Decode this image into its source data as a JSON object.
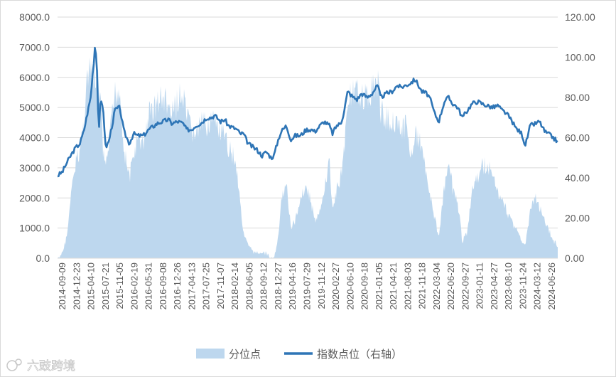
{
  "watermark": {
    "text": "六豉跨境"
  },
  "colors": {
    "area": "#bdd7ee",
    "line": "#2e75b6",
    "axis": "#d9d9d9",
    "text": "#595959"
  },
  "chart_data": {
    "type": "area+line",
    "title": "",
    "legend": {
      "position": "bottom",
      "entries": [
        {
          "key": "percentile",
          "label": "分位点",
          "kind": "area"
        },
        {
          "key": "index",
          "label": "指数点位（右轴）",
          "kind": "line"
        }
      ]
    },
    "left_axis": {
      "min": 0,
      "max": 8000,
      "step": 1000,
      "ticks": [
        "0.0",
        "1000.0",
        "2000.0",
        "3000.0",
        "4000.0",
        "5000.0",
        "6000.0",
        "7000.0",
        "8000.0"
      ]
    },
    "right_axis": {
      "min": 0,
      "max": 120,
      "step": 20,
      "ticks": [
        "0.00",
        "20.00",
        "40.00",
        "60.00",
        "80.00",
        "100.00",
        "120.00"
      ]
    },
    "x_axis": {
      "start": "2014-09-09",
      "end": "2024-09-30",
      "ticks": [
        "2014-09-09",
        "2014-12-23",
        "2015-04-10",
        "2015-07-21",
        "2015-11-05",
        "2016-02-19",
        "2016-05-31",
        "2016-09-08",
        "2016-12-26",
        "2017-04-13",
        "2017-07-25",
        "2017-11-07",
        "2018-02-14",
        "2018-06-05",
        "2018-09-12",
        "2018-12-27",
        "2019-04-16",
        "2019-07-29",
        "2019-11-12",
        "2020-02-27",
        "2020-06-10",
        "2020-09-18",
        "2021-01-05",
        "2021-04-21",
        "2021-08-03",
        "2021-11-18",
        "2022-03-04",
        "2022-06-20",
        "2022-09-27",
        "2023-01-11",
        "2023-04-27",
        "2023-08-10",
        "2023-11-24",
        "2024-03-12",
        "2024-06-26"
      ]
    },
    "series": [
      {
        "name": "分位点",
        "axis": "left",
        "kind": "area",
        "points": [
          [
            "2014-09-09",
            30
          ],
          [
            "2014-10-20",
            300
          ],
          [
            "2014-11-20",
            1000
          ],
          [
            "2014-12-20",
            2500
          ],
          [
            "2015-01-20",
            3500
          ],
          [
            "2015-02-20",
            4000
          ],
          [
            "2015-03-20",
            5000
          ],
          [
            "2015-04-10",
            6500
          ],
          [
            "2015-05-10",
            6800
          ],
          [
            "2015-06-10",
            6600
          ],
          [
            "2015-07-10",
            6300
          ],
          [
            "2015-07-21",
            6000
          ],
          [
            "2015-08-10",
            3800
          ],
          [
            "2015-09-01",
            3400
          ],
          [
            "2015-10-01",
            4600
          ],
          [
            "2015-11-05",
            6100
          ],
          [
            "2015-12-10",
            6300
          ],
          [
            "2016-01-10",
            4000
          ],
          [
            "2016-02-19",
            3000
          ],
          [
            "2016-03-20",
            3800
          ],
          [
            "2016-04-20",
            4400
          ],
          [
            "2016-05-31",
            4200
          ],
          [
            "2016-07-10",
            5300
          ],
          [
            "2016-08-20",
            5600
          ],
          [
            "2016-09-08",
            5700
          ],
          [
            "2016-10-20",
            5900
          ],
          [
            "2016-12-01",
            5600
          ],
          [
            "2016-12-26",
            5200
          ],
          [
            "2017-02-10",
            5900
          ],
          [
            "2017-03-20",
            5800
          ],
          [
            "2017-04-13",
            5200
          ],
          [
            "2017-05-20",
            4700
          ],
          [
            "2017-06-20",
            4600
          ],
          [
            "2017-07-25",
            4900
          ],
          [
            "2017-09-10",
            5000
          ],
          [
            "2017-10-10",
            5100
          ],
          [
            "2017-11-07",
            5000
          ],
          [
            "2017-12-20",
            4600
          ],
          [
            "2018-01-20",
            4400
          ],
          [
            "2018-02-14",
            4100
          ],
          [
            "2018-03-20",
            3900
          ],
          [
            "2018-04-20",
            3200
          ],
          [
            "2018-05-10",
            2300
          ],
          [
            "2018-06-05",
            1000
          ],
          [
            "2018-07-10",
            500
          ],
          [
            "2018-08-20",
            300
          ],
          [
            "2018-09-12",
            250
          ],
          [
            "2018-10-20",
            300
          ],
          [
            "2018-11-20",
            250
          ],
          [
            "2018-12-27",
            50
          ],
          [
            "2019-01-15",
            40
          ],
          [
            "2019-02-20",
            900
          ],
          [
            "2019-03-10",
            2200
          ],
          [
            "2019-04-16",
            2800
          ],
          [
            "2019-05-20",
            1200
          ],
          [
            "2019-06-20",
            1400
          ],
          [
            "2019-07-29",
            2300
          ],
          [
            "2019-09-10",
            2700
          ],
          [
            "2019-10-20",
            2000
          ],
          [
            "2019-11-12",
            1400
          ],
          [
            "2019-12-20",
            1700
          ],
          [
            "2020-01-20",
            2600
          ],
          [
            "2020-02-27",
            3600
          ],
          [
            "2020-03-20",
            1800
          ],
          [
            "2020-04-20",
            2500
          ],
          [
            "2020-05-20",
            3100
          ],
          [
            "2020-06-10",
            3800
          ],
          [
            "2020-07-20",
            6200
          ],
          [
            "2020-08-20",
            6000
          ],
          [
            "2020-09-18",
            6000
          ],
          [
            "2020-10-20",
            6200
          ],
          [
            "2020-12-01",
            5800
          ],
          [
            "2021-01-05",
            6300
          ],
          [
            "2021-02-15",
            6500
          ],
          [
            "2021-03-10",
            5400
          ],
          [
            "2021-04-21",
            5200
          ],
          [
            "2021-06-01",
            5000
          ],
          [
            "2021-07-10",
            5200
          ],
          [
            "2021-08-03",
            4600
          ],
          [
            "2021-09-10",
            4900
          ],
          [
            "2021-10-10",
            4000
          ],
          [
            "2021-11-18",
            4500
          ],
          [
            "2022-01-05",
            4200
          ],
          [
            "2022-02-10",
            3200
          ],
          [
            "2022-03-04",
            2500
          ],
          [
            "2022-04-10",
            1500
          ],
          [
            "2022-05-10",
            900
          ],
          [
            "2022-06-20",
            2600
          ],
          [
            "2022-07-20",
            3400
          ],
          [
            "2022-08-20",
            2600
          ],
          [
            "2022-09-27",
            2000
          ],
          [
            "2022-10-31",
            700
          ],
          [
            "2022-12-10",
            1100
          ],
          [
            "2023-01-11",
            2600
          ],
          [
            "2023-02-20",
            3000
          ],
          [
            "2023-03-20",
            3300
          ],
          [
            "2023-04-27",
            3500
          ],
          [
            "2023-06-10",
            3000
          ],
          [
            "2023-07-20",
            2500
          ],
          [
            "2023-08-10",
            2200
          ],
          [
            "2023-09-20",
            1800
          ],
          [
            "2023-11-01",
            1400
          ],
          [
            "2023-11-24",
            1200
          ],
          [
            "2024-01-10",
            700
          ],
          [
            "2024-02-05",
            500
          ],
          [
            "2024-03-12",
            1800
          ],
          [
            "2024-04-20",
            2300
          ],
          [
            "2024-05-20",
            1900
          ],
          [
            "2024-06-26",
            1400
          ],
          [
            "2024-08-10",
            900
          ],
          [
            "2024-09-30",
            500
          ]
        ]
      },
      {
        "name": "指数点位（右轴）",
        "axis": "right",
        "kind": "line",
        "points": [
          [
            "2014-09-09",
            41
          ],
          [
            "2014-10-15",
            43
          ],
          [
            "2014-11-20",
            48
          ],
          [
            "2014-12-23",
            52
          ],
          [
            "2015-01-20",
            55
          ],
          [
            "2015-02-20",
            57
          ],
          [
            "2015-03-20",
            63
          ],
          [
            "2015-04-10",
            70
          ],
          [
            "2015-05-10",
            80
          ],
          [
            "2015-06-05",
            100
          ],
          [
            "2015-06-12",
            107
          ],
          [
            "2015-06-25",
            96
          ],
          [
            "2015-07-08",
            62
          ],
          [
            "2015-07-21",
            78
          ],
          [
            "2015-08-10",
            75
          ],
          [
            "2015-08-28",
            55
          ],
          [
            "2015-09-20",
            58
          ],
          [
            "2015-10-20",
            68
          ],
          [
            "2015-11-05",
            74
          ],
          [
            "2015-12-10",
            75
          ],
          [
            "2016-01-10",
            63
          ],
          [
            "2016-02-19",
            57
          ],
          [
            "2016-03-20",
            62
          ],
          [
            "2016-04-20",
            61
          ],
          [
            "2016-05-31",
            61
          ],
          [
            "2016-07-10",
            64
          ],
          [
            "2016-08-20",
            66
          ],
          [
            "2016-09-08",
            67
          ],
          [
            "2016-10-20",
            68
          ],
          [
            "2016-12-01",
            69
          ],
          [
            "2016-12-26",
            67
          ],
          [
            "2017-02-10",
            68
          ],
          [
            "2017-03-20",
            67
          ],
          [
            "2017-04-13",
            64
          ],
          [
            "2017-05-20",
            64
          ],
          [
            "2017-06-20",
            66
          ],
          [
            "2017-07-25",
            67
          ],
          [
            "2017-09-10",
            70
          ],
          [
            "2017-10-10",
            70
          ],
          [
            "2017-11-07",
            71
          ],
          [
            "2017-12-20",
            68
          ],
          [
            "2018-01-20",
            69
          ],
          [
            "2018-02-14",
            66
          ],
          [
            "2018-03-20",
            65
          ],
          [
            "2018-04-20",
            64
          ],
          [
            "2018-05-10",
            62
          ],
          [
            "2018-06-05",
            62
          ],
          [
            "2018-07-10",
            57
          ],
          [
            "2018-08-20",
            55
          ],
          [
            "2018-09-12",
            54
          ],
          [
            "2018-10-20",
            51
          ],
          [
            "2018-11-20",
            53
          ],
          [
            "2018-12-27",
            50
          ],
          [
            "2019-01-15",
            51
          ],
          [
            "2019-02-20",
            60
          ],
          [
            "2019-03-10",
            63
          ],
          [
            "2019-04-16",
            66
          ],
          [
            "2019-05-20",
            59
          ],
          [
            "2019-06-20",
            61
          ],
          [
            "2019-07-29",
            61
          ],
          [
            "2019-09-10",
            64
          ],
          [
            "2019-10-20",
            64
          ],
          [
            "2019-11-12",
            63
          ],
          [
            "2019-12-20",
            66
          ],
          [
            "2020-01-20",
            68
          ],
          [
            "2020-02-27",
            66
          ],
          [
            "2020-03-20",
            62
          ],
          [
            "2020-04-20",
            66
          ],
          [
            "2020-05-20",
            67
          ],
          [
            "2020-06-10",
            72
          ],
          [
            "2020-07-10",
            83
          ],
          [
            "2020-08-20",
            80
          ],
          [
            "2020-09-18",
            79
          ],
          [
            "2020-10-20",
            82
          ],
          [
            "2020-12-01",
            80
          ],
          [
            "2021-01-05",
            82
          ],
          [
            "2021-02-15",
            86
          ],
          [
            "2021-03-10",
            80
          ],
          [
            "2021-04-21",
            82
          ],
          [
            "2021-06-01",
            83
          ],
          [
            "2021-07-10",
            86
          ],
          [
            "2021-08-03",
            85
          ],
          [
            "2021-09-10",
            86
          ],
          [
            "2021-10-10",
            87
          ],
          [
            "2021-11-18",
            89
          ],
          [
            "2022-01-05",
            83
          ],
          [
            "2022-02-10",
            82
          ],
          [
            "2022-03-04",
            80
          ],
          [
            "2022-04-10",
            72
          ],
          [
            "2022-05-10",
            68
          ],
          [
            "2022-06-20",
            78
          ],
          [
            "2022-07-20",
            80
          ],
          [
            "2022-08-20",
            77
          ],
          [
            "2022-09-27",
            75
          ],
          [
            "2022-10-31",
            70
          ],
          [
            "2022-12-10",
            74
          ],
          [
            "2023-01-11",
            77
          ],
          [
            "2023-02-20",
            78
          ],
          [
            "2023-03-20",
            77
          ],
          [
            "2023-04-27",
            76
          ],
          [
            "2023-06-10",
            75
          ],
          [
            "2023-07-20",
            76
          ],
          [
            "2023-08-10",
            74
          ],
          [
            "2023-09-20",
            72
          ],
          [
            "2023-11-01",
            68
          ],
          [
            "2023-11-24",
            65
          ],
          [
            "2024-01-10",
            62
          ],
          [
            "2024-02-05",
            56
          ],
          [
            "2024-03-12",
            66
          ],
          [
            "2024-04-20",
            67
          ],
          [
            "2024-05-20",
            68
          ],
          [
            "2024-06-26",
            63
          ],
          [
            "2024-08-10",
            61
          ],
          [
            "2024-09-30",
            58
          ]
        ]
      }
    ]
  }
}
